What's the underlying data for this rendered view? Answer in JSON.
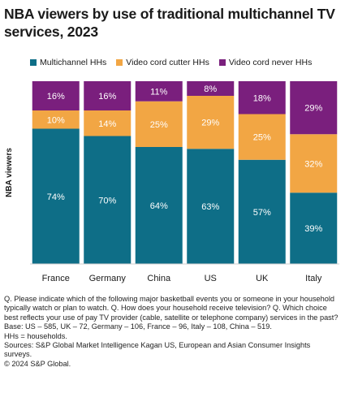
{
  "header": {
    "title": "NBA viewers by use of traditional multichannel TV services, 2023"
  },
  "colors": {
    "multichannel": "#0e6e87",
    "cord_cutter": "#f2a644",
    "cord_never": "#7a1f7d"
  },
  "chart_data": {
    "type": "bar",
    "stacked": true,
    "categories": [
      "France",
      "Germany",
      "China",
      "US",
      "UK",
      "Italy"
    ],
    "series": [
      {
        "name": "Multichannel HHs",
        "values": [
          74,
          70,
          64,
          63,
          57,
          39
        ],
        "labels": [
          "74%",
          "70%",
          "64%",
          "63%",
          "57%",
          "39%"
        ]
      },
      {
        "name": "Video cord cutter HHs",
        "values": [
          10,
          14,
          25,
          29,
          25,
          32
        ],
        "labels": [
          "10%",
          "14%",
          "25%",
          "29%",
          "25%",
          "32%"
        ]
      },
      {
        "name": "Video cord never HHs",
        "values": [
          16,
          16,
          11,
          8,
          18,
          29
        ],
        "labels": [
          "16%",
          "16%",
          "11%",
          "8%",
          "18%",
          "29%"
        ]
      }
    ],
    "ylabel": "NBA viewers",
    "xlabel": "",
    "ylim": [
      0,
      100
    ],
    "legend_position": "top",
    "grid": false
  },
  "notes": {
    "question": "Q. Please indicate which of the following major basketball events you or someone in your household typically watch or plan to watch. Q. How does your household receive television? Q. Which choice best reflects your use of pay TV provider (cable, satellite or telephone company) services in the past?",
    "base": "Base: US – 585, UK – 72, Germany – 106, France – 96, Italy – 108, China – 519.",
    "hhs": "HHs = households.",
    "sources": "Sources: S&P Global Market Intelligence Kagan US, European and Asian Consumer Insights surveys.",
    "copyright": "© 2024 S&P Global."
  }
}
